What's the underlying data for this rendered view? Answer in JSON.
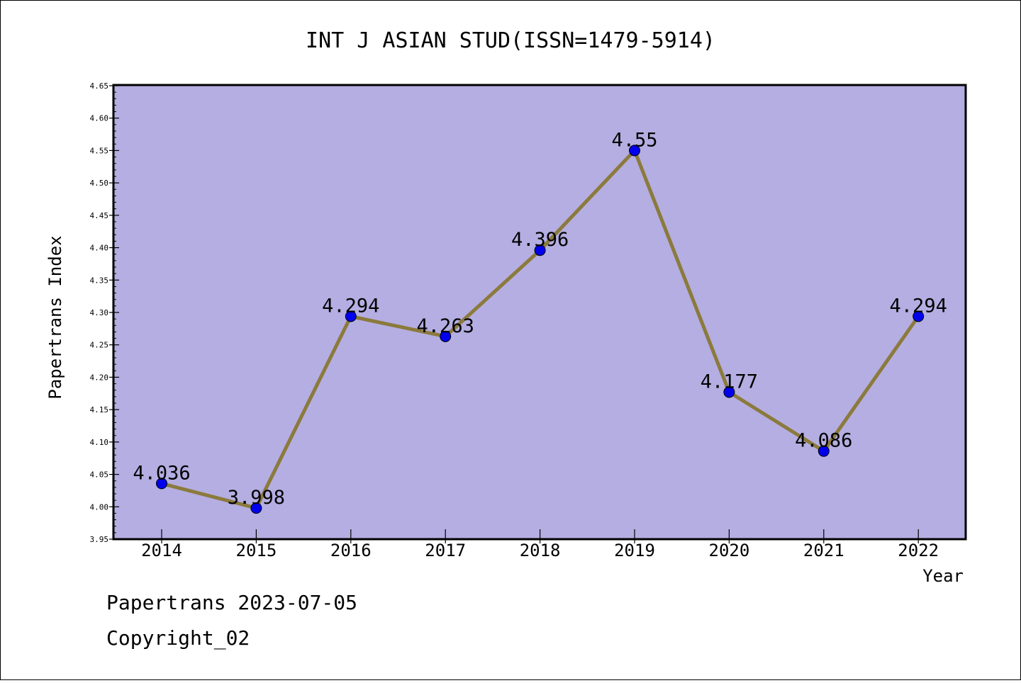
{
  "chart_data": {
    "type": "line",
    "title": "INT J ASIAN STUD(ISSN=1479-5914)",
    "xlabel": "Year",
    "ylabel": "Papertrans Index",
    "categories": [
      "2014",
      "2015",
      "2016",
      "2017",
      "2018",
      "2019",
      "2020",
      "2021",
      "2022"
    ],
    "series": [
      {
        "values": [
          4.036,
          3.998,
          4.294,
          4.263,
          4.396,
          4.55,
          4.177,
          4.086,
          4.294
        ]
      }
    ],
    "data_labels": [
      "4.036",
      "3.998",
      "4.294",
      "4.263",
      "4.396",
      "4.55",
      "4.177",
      "4.086",
      "4.294"
    ],
    "ylim": [
      3.95,
      4.65
    ],
    "yticks": [
      "3.95",
      "4.00",
      "4.05",
      "4.10",
      "4.15",
      "4.20",
      "4.25",
      "4.30",
      "4.35",
      "4.40",
      "4.45",
      "4.50",
      "4.55",
      "4.60",
      "4.65"
    ],
    "grid": false,
    "colors": {
      "plot_bg": "#b4aee2",
      "line": "#8b7a3c",
      "marker": "#0000ee"
    }
  },
  "footer": {
    "line1": "Papertrans 2023-07-05",
    "line2": "Copyright_02"
  }
}
